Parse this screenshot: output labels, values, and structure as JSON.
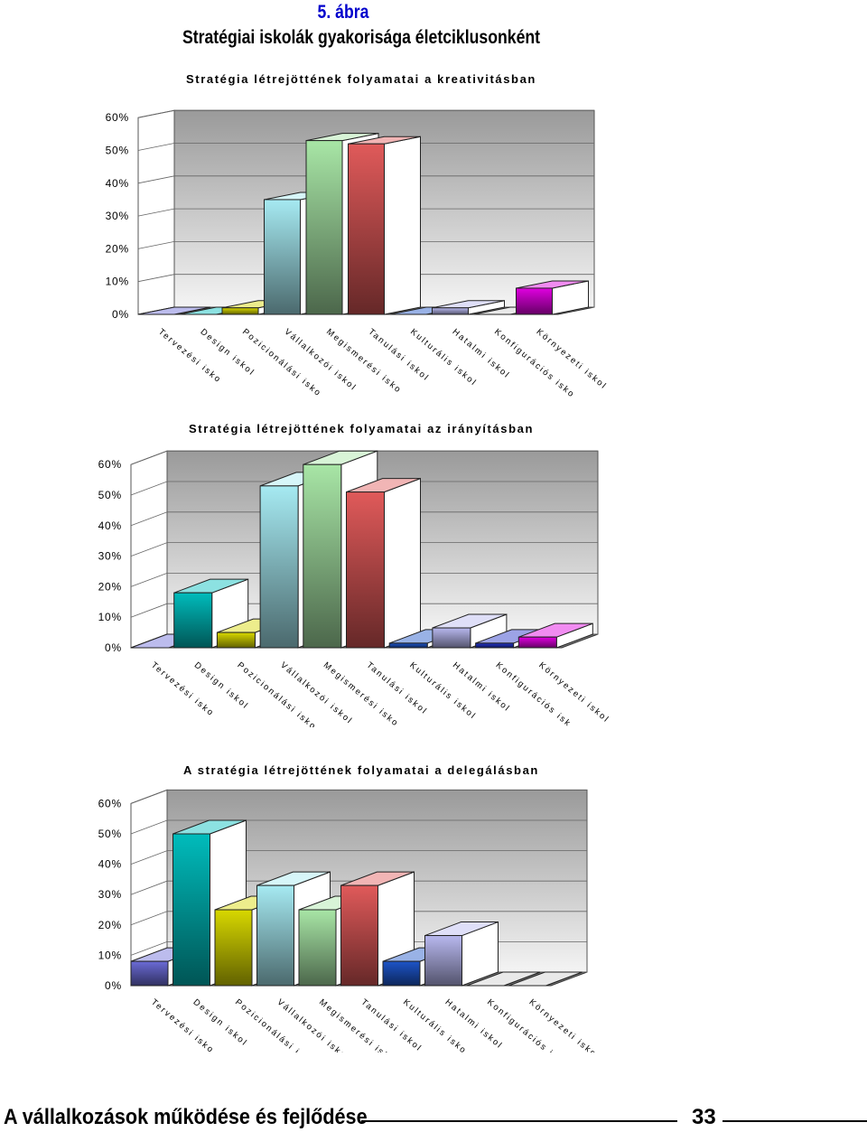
{
  "figure_number": "5. ábra",
  "figure_title": "Stratégiai iskolák gyakorisága életciklusonként",
  "footer": {
    "book_title": "A vállalkozások működése és fejlődése",
    "page_number": "33"
  },
  "chart_data": [
    {
      "type": "bar",
      "title": "Stratégia létrejöttének folyamatai a kreativitásban",
      "categories": [
        "Tervezési iskola",
        "Design iskola",
        "Pozicionálási iskola",
        "Vállalkozói iskola",
        "Megismerési iskola",
        "Tanulási iskola",
        "Kulturális iskola",
        "Hatalmi iskola",
        "Konfigurációs iskola",
        "Környezeti iskola"
      ],
      "category_labels": [
        "Tervezési isko",
        "Design iskol",
        "Pozicionálási isko",
        "Vállalkozói iskol",
        "Megismerési isko",
        "Tanulási iskol",
        "Kulturális iskol",
        "Hatalmi iskol",
        "Konfigurációs isko",
        "Környezeti iskol"
      ],
      "values": [
        0,
        0,
        2,
        35,
        53,
        52,
        0,
        2,
        0,
        8
      ],
      "ylim": [
        0,
        60
      ],
      "yticks": [
        "0%",
        "10%",
        "20%",
        "30%",
        "40%",
        "50%",
        "60%"
      ],
      "colors": [
        "#6b6bd6",
        "#00bcbc",
        "#d8d800",
        "#a6eaf2",
        "#a8e6a6",
        "#e05a5a",
        "#1d54c8",
        "#b8b8ef",
        "#cfcfcf",
        "#e000e0"
      ]
    },
    {
      "type": "bar",
      "title": "Stratégia létrejöttének folyamatai az irányításban",
      "categories": [
        "Tervezési iskola",
        "Design iskola",
        "Pozicionálási iskola",
        "Vállalkozói iskola",
        "Megismerési iskola",
        "Tanulási iskola",
        "Kulturális iskola",
        "Hatalmi iskola",
        "Konfigurációs iskola",
        "Környezeti iskola"
      ],
      "category_labels": [
        "Tervezési isko",
        "Design iskol",
        "Pozicionálási isko",
        "Vállalkozói iskol",
        "Megismerési isko",
        "Tanulási iskol",
        "Kulturális iskol",
        "Hatalmi iskol",
        "Konfigurációs isk",
        "Környezeti iskol"
      ],
      "values": [
        0,
        18,
        5,
        53,
        60,
        51,
        1.5,
        6.5,
        1.5,
        3.5
      ],
      "ylim": [
        0,
        60
      ],
      "yticks": [
        "0%",
        "10%",
        "20%",
        "30%",
        "40%",
        "50%",
        "60%"
      ],
      "colors": [
        "#6b6bd6",
        "#00bcbc",
        "#d8d800",
        "#a6eaf2",
        "#a8e6a6",
        "#e05a5a",
        "#1d54c8",
        "#b8b8ef",
        "#2233c8",
        "#e000e0"
      ]
    },
    {
      "type": "bar",
      "title": "A stratégia létrejöttének folyamatai a delegálásban",
      "categories": [
        "Tervezési iskola",
        "Design iskola",
        "Pozicionálási iskola",
        "Vállalkozói iskola",
        "Megismerési iskola",
        "Tanulási iskola",
        "Kulturális iskola",
        "Hatalmi iskola",
        "Konfigurációs iskola",
        "Környezeti iskola"
      ],
      "category_labels": [
        "Tervezési isko",
        "Design iskol",
        "Pozicionálási isko",
        "Vállalkozói isko",
        "Megismerési isko",
        "Tanulási iskol",
        "Kulturális isko",
        "Hatalmi iskol",
        "Konfigurációs isko",
        "Környezeti iskol"
      ],
      "values": [
        8,
        50,
        25,
        33,
        25,
        33,
        8,
        16.5,
        0,
        0
      ],
      "ylim": [
        0,
        60
      ],
      "yticks": [
        "0%",
        "10%",
        "20%",
        "30%",
        "40%",
        "50%",
        "60%"
      ],
      "colors": [
        "#6b6bd6",
        "#00bcbc",
        "#d8d800",
        "#a6eaf2",
        "#a8e6a6",
        "#e05a5a",
        "#1d54c8",
        "#b8b8ef",
        "#cfcfcf",
        "#cfcfcf"
      ]
    }
  ]
}
